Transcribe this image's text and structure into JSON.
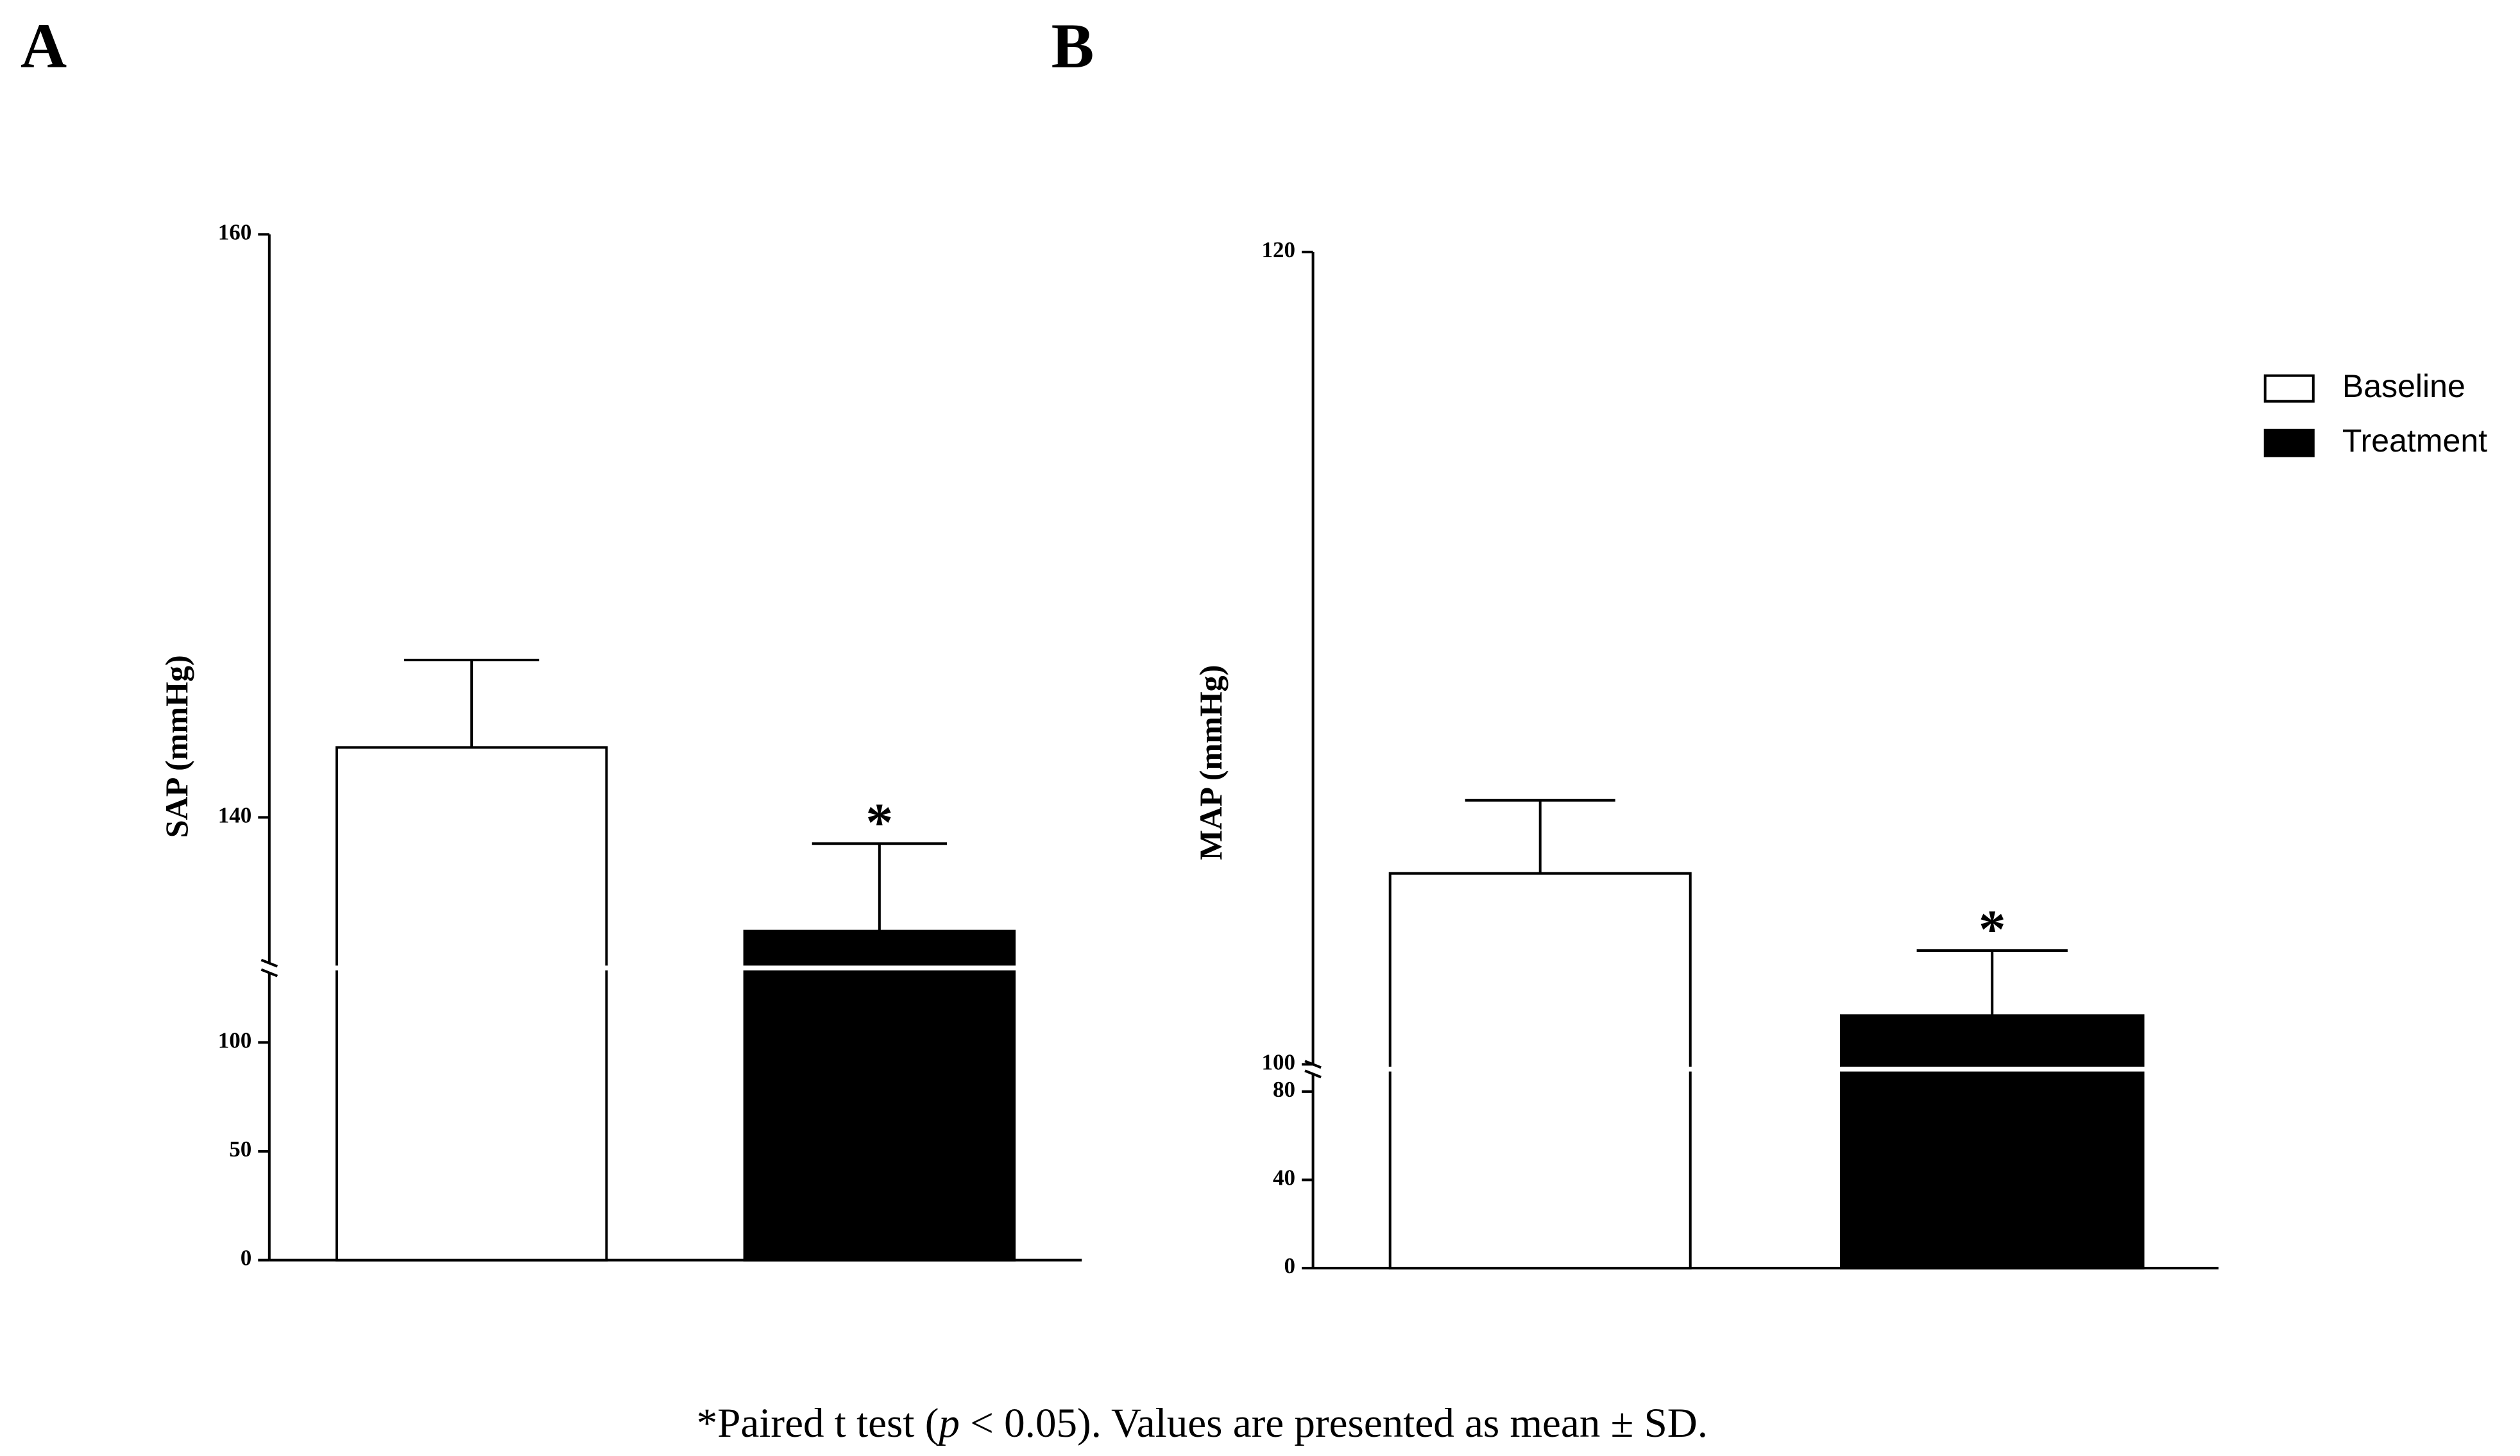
{
  "panels": [
    "A",
    "B"
  ],
  "chart_data": [
    {
      "type": "bar",
      "ylabel": "SAP (mmHg)",
      "ylim": [
        0,
        160
      ],
      "ybreak": [
        132,
        135
      ],
      "yticks": [
        0,
        50,
        100,
        140,
        160
      ],
      "series": [
        {
          "color": "#ffffff",
          "values": [
            142.4
          ],
          "errors": [
            3.0
          ]
        },
        {
          "color": "#000000",
          "values": [
            136.1
          ],
          "errors": [
            3.0
          ]
        }
      ],
      "annotations": [
        {
          "series": 1,
          "text": "*"
        }
      ]
    },
    {
      "type": "bar",
      "ylabel": "MAP (mmHg)",
      "ylim": [
        0,
        120
      ],
      "ybreak": [
        88,
        100
      ],
      "yticks": [
        0,
        40,
        80,
        100,
        120
      ],
      "series": [
        {
          "name": "Baseline",
          "color": "#ffffff",
          "values": [
            104.7
          ],
          "errors": [
            1.8
          ]
        },
        {
          "name": "Treatment",
          "color": "#000000",
          "values": [
            101.2
          ],
          "errors": [
            1.6
          ]
        }
      ],
      "legend": "upper right",
      "annotations": [
        {
          "series": 1,
          "text": "*"
        }
      ]
    }
  ],
  "footnote": [
    "*Paired t test (",
    "p",
    " < 0.05). Values are presented as mean ± SD."
  ]
}
